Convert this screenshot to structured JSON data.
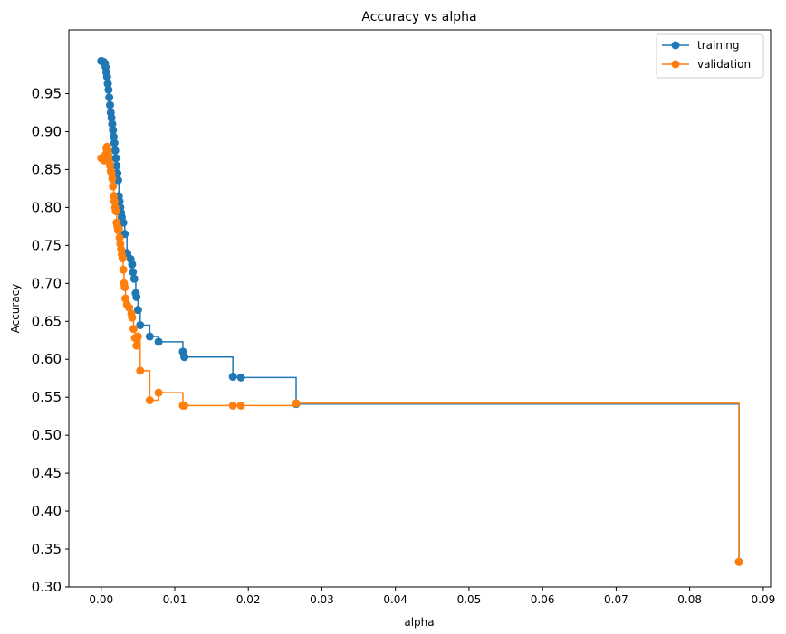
{
  "chart_data": {
    "type": "line",
    "title": "Accuracy vs alpha",
    "xlabel": "alpha",
    "ylabel": "Accuracy",
    "xlim": [
      -0.0044,
      0.091
    ],
    "ylim": [
      0.3,
      1.034
    ],
    "xticks": [
      "0.00",
      "0.01",
      "0.02",
      "0.03",
      "0.04",
      "0.05",
      "0.06",
      "0.07",
      "0.08",
      "0.09"
    ],
    "xtick_values": [
      0.0,
      0.01,
      0.02,
      0.03,
      0.04,
      0.05,
      0.06,
      0.07,
      0.08,
      0.09
    ],
    "yticks": [
      "0.30",
      "0.35",
      "0.40",
      "0.45",
      "0.50",
      "0.55",
      "0.60",
      "0.65",
      "0.70",
      "0.75",
      "0.80",
      "0.85",
      "0.90",
      "0.95"
    ],
    "ytick_values": [
      0.3,
      0.35,
      0.4,
      0.45,
      0.5,
      0.55,
      0.6,
      0.65,
      0.7,
      0.75,
      0.8,
      0.85,
      0.9,
      0.95
    ],
    "drawstyle": "steps-post",
    "grid": false,
    "legend_position": "top-right",
    "series": [
      {
        "name": "training",
        "color": "#1f77b4",
        "x": [
          0.0,
          0.0003,
          0.0005,
          0.0006,
          0.0007,
          0.0008,
          0.0009,
          0.001,
          0.0011,
          0.0012,
          0.0013,
          0.0014,
          0.0015,
          0.0016,
          0.0017,
          0.0018,
          0.0019,
          0.002,
          0.0021,
          0.0022,
          0.0023,
          0.0024,
          0.0025,
          0.0026,
          0.0027,
          0.0028,
          0.003,
          0.0032,
          0.0035,
          0.004,
          0.0042,
          0.0043,
          0.0045,
          0.0047,
          0.0048,
          0.005,
          0.0053,
          0.0066,
          0.0078,
          0.0111,
          0.0113,
          0.0179,
          0.019,
          0.0265,
          0.0867
        ],
        "y": [
          0.993,
          0.992,
          0.99,
          0.985,
          0.978,
          0.972,
          0.963,
          0.955,
          0.945,
          0.935,
          0.925,
          0.918,
          0.91,
          0.902,
          0.893,
          0.885,
          0.875,
          0.865,
          0.855,
          0.845,
          0.836,
          0.815,
          0.808,
          0.8,
          0.793,
          0.787,
          0.78,
          0.765,
          0.74,
          0.732,
          0.725,
          0.715,
          0.706,
          0.687,
          0.682,
          0.665,
          0.645,
          0.63,
          0.623,
          0.61,
          0.603,
          0.577,
          0.576,
          0.541,
          0.333
        ]
      },
      {
        "name": "validation",
        "color": "#ff7f0e",
        "x": [
          0.0,
          0.0002,
          0.0004,
          0.0006,
          0.0007,
          0.0008,
          0.0009,
          0.001,
          0.0011,
          0.0012,
          0.0013,
          0.0014,
          0.0015,
          0.0016,
          0.0017,
          0.0018,
          0.0019,
          0.002,
          0.0021,
          0.0022,
          0.0023,
          0.0024,
          0.0025,
          0.0026,
          0.0027,
          0.0028,
          0.0029,
          0.003,
          0.0031,
          0.0032,
          0.0033,
          0.0035,
          0.0038,
          0.0041,
          0.0042,
          0.0044,
          0.0046,
          0.0048,
          0.005,
          0.0053,
          0.0066,
          0.0078,
          0.0111,
          0.0113,
          0.0179,
          0.019,
          0.0265,
          0.0867
        ],
        "y": [
          0.865,
          0.864,
          0.862,
          0.87,
          0.878,
          0.88,
          0.875,
          0.868,
          0.86,
          0.855,
          0.848,
          0.845,
          0.838,
          0.828,
          0.815,
          0.808,
          0.8,
          0.795,
          0.78,
          0.775,
          0.77,
          0.772,
          0.76,
          0.752,
          0.745,
          0.738,
          0.733,
          0.718,
          0.7,
          0.695,
          0.68,
          0.672,
          0.668,
          0.66,
          0.655,
          0.64,
          0.628,
          0.618,
          0.63,
          0.585,
          0.546,
          0.556,
          0.539,
          0.539,
          0.539,
          0.539,
          0.542,
          0.333
        ]
      }
    ]
  }
}
